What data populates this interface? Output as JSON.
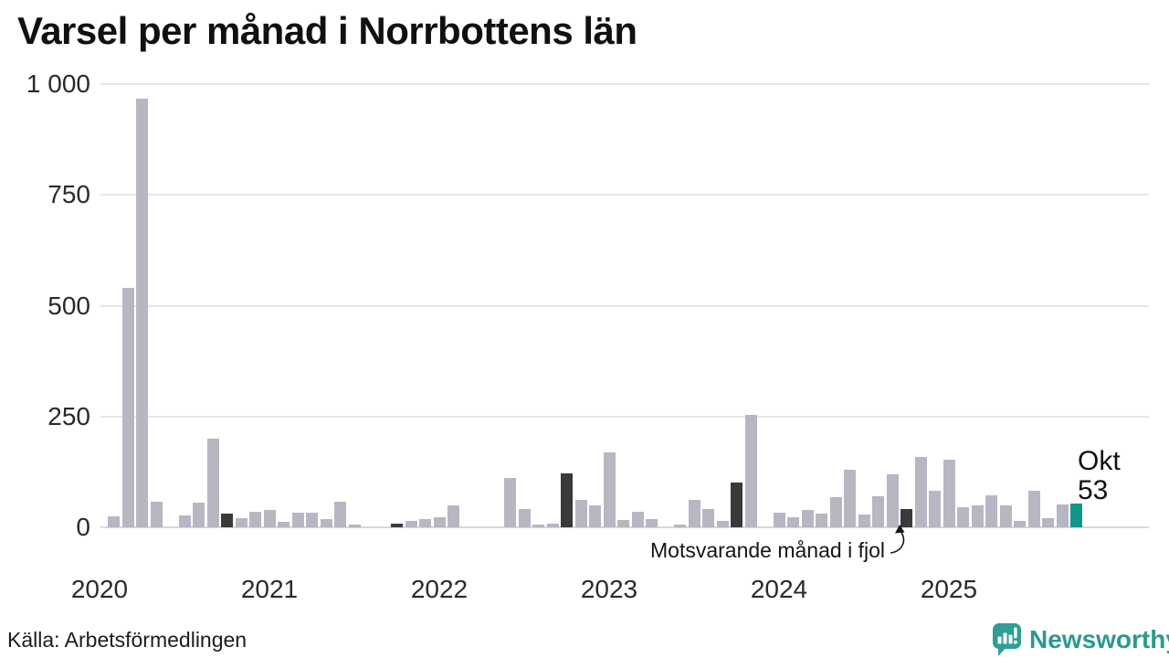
{
  "title": "Varsel per månad i Norrbottens län",
  "source": "Källa: Arbetsförmedlingen",
  "logo": {
    "text": "Newsworthy"
  },
  "annotation": {
    "text": "Motsvarande månad i fjol"
  },
  "highlight_label": {
    "line1": "Okt",
    "line2": "53"
  },
  "colors": {
    "bar_normal": "#b9b6c3",
    "bar_prev_october": "#3a3a3a",
    "bar_current": "#12968a",
    "logo_teal": "#2f9e93",
    "grid": "#e6e6ea",
    "text": "#1a1a1a"
  },
  "chart_data": {
    "type": "bar",
    "title": "Varsel per månad i Norrbottens län",
    "xlabel": "",
    "ylabel": "",
    "ylim": [
      0,
      1000
    ],
    "grid": "horizontal",
    "yticks": [
      0,
      250,
      500,
      750,
      1000
    ],
    "ytick_labels": [
      "0",
      "250",
      "500",
      "750",
      "1 000"
    ],
    "x_year_labels": [
      "2020",
      "2021",
      "2022",
      "2023",
      "2024",
      "2025"
    ],
    "start_month": "2020-02",
    "end_month": "2025-10",
    "highlighted_month": {
      "label": "Okt",
      "value": 53
    },
    "annotation_target_month": "2024-10",
    "points": [
      {
        "month": "2020-02",
        "value": 25,
        "kind": "normal"
      },
      {
        "month": "2020-03",
        "value": 540,
        "kind": "normal"
      },
      {
        "month": "2020-04",
        "value": 967,
        "kind": "normal"
      },
      {
        "month": "2020-05",
        "value": 57,
        "kind": "normal"
      },
      {
        "month": "2020-06",
        "value": 0,
        "kind": "normal"
      },
      {
        "month": "2020-07",
        "value": 27,
        "kind": "normal"
      },
      {
        "month": "2020-08",
        "value": 55,
        "kind": "normal"
      },
      {
        "month": "2020-09",
        "value": 200,
        "kind": "normal"
      },
      {
        "month": "2020-10",
        "value": 31,
        "kind": "prev_october"
      },
      {
        "month": "2020-11",
        "value": 21,
        "kind": "normal"
      },
      {
        "month": "2020-12",
        "value": 35,
        "kind": "normal"
      },
      {
        "month": "2021-01",
        "value": 39,
        "kind": "normal"
      },
      {
        "month": "2021-02",
        "value": 12,
        "kind": "normal"
      },
      {
        "month": "2021-03",
        "value": 33,
        "kind": "normal"
      },
      {
        "month": "2021-04",
        "value": 33,
        "kind": "normal"
      },
      {
        "month": "2021-05",
        "value": 19,
        "kind": "normal"
      },
      {
        "month": "2021-06",
        "value": 58,
        "kind": "normal"
      },
      {
        "month": "2021-07",
        "value": 6,
        "kind": "normal"
      },
      {
        "month": "2021-08",
        "value": 0,
        "kind": "normal"
      },
      {
        "month": "2021-09",
        "value": 0,
        "kind": "normal"
      },
      {
        "month": "2021-10",
        "value": 8,
        "kind": "prev_october"
      },
      {
        "month": "2021-11",
        "value": 14,
        "kind": "normal"
      },
      {
        "month": "2021-12",
        "value": 18,
        "kind": "normal"
      },
      {
        "month": "2022-01",
        "value": 23,
        "kind": "normal"
      },
      {
        "month": "2022-02",
        "value": 49,
        "kind": "normal"
      },
      {
        "month": "2022-03",
        "value": 0,
        "kind": "normal"
      },
      {
        "month": "2022-04",
        "value": 0,
        "kind": "normal"
      },
      {
        "month": "2022-05",
        "value": 0,
        "kind": "normal"
      },
      {
        "month": "2022-06",
        "value": 111,
        "kind": "normal"
      },
      {
        "month": "2022-07",
        "value": 42,
        "kind": "normal"
      },
      {
        "month": "2022-08",
        "value": 6,
        "kind": "normal"
      },
      {
        "month": "2022-09",
        "value": 8,
        "kind": "normal"
      },
      {
        "month": "2022-10",
        "value": 121,
        "kind": "prev_october"
      },
      {
        "month": "2022-11",
        "value": 62,
        "kind": "normal"
      },
      {
        "month": "2022-12",
        "value": 49,
        "kind": "normal"
      },
      {
        "month": "2023-01",
        "value": 169,
        "kind": "normal"
      },
      {
        "month": "2023-02",
        "value": 17,
        "kind": "normal"
      },
      {
        "month": "2023-03",
        "value": 36,
        "kind": "normal"
      },
      {
        "month": "2023-04",
        "value": 19,
        "kind": "normal"
      },
      {
        "month": "2023-05",
        "value": 0,
        "kind": "normal"
      },
      {
        "month": "2023-06",
        "value": 7,
        "kind": "normal"
      },
      {
        "month": "2023-07",
        "value": 62,
        "kind": "normal"
      },
      {
        "month": "2023-08",
        "value": 41,
        "kind": "normal"
      },
      {
        "month": "2023-09",
        "value": 14,
        "kind": "normal"
      },
      {
        "month": "2023-10",
        "value": 101,
        "kind": "prev_october"
      },
      {
        "month": "2023-11",
        "value": 253,
        "kind": "normal"
      },
      {
        "month": "2023-12",
        "value": 0,
        "kind": "normal"
      },
      {
        "month": "2024-01",
        "value": 33,
        "kind": "normal"
      },
      {
        "month": "2024-02",
        "value": 23,
        "kind": "normal"
      },
      {
        "month": "2024-03",
        "value": 39,
        "kind": "normal"
      },
      {
        "month": "2024-04",
        "value": 31,
        "kind": "normal"
      },
      {
        "month": "2024-05",
        "value": 68,
        "kind": "normal"
      },
      {
        "month": "2024-06",
        "value": 130,
        "kind": "normal"
      },
      {
        "month": "2024-07",
        "value": 29,
        "kind": "normal"
      },
      {
        "month": "2024-08",
        "value": 70,
        "kind": "normal"
      },
      {
        "month": "2024-09",
        "value": 119,
        "kind": "normal"
      },
      {
        "month": "2024-10",
        "value": 41,
        "kind": "prev_october"
      },
      {
        "month": "2024-11",
        "value": 159,
        "kind": "normal"
      },
      {
        "month": "2024-12",
        "value": 82,
        "kind": "normal"
      },
      {
        "month": "2025-01",
        "value": 153,
        "kind": "normal"
      },
      {
        "month": "2025-02",
        "value": 45,
        "kind": "normal"
      },
      {
        "month": "2025-03",
        "value": 49,
        "kind": "normal"
      },
      {
        "month": "2025-04",
        "value": 72,
        "kind": "normal"
      },
      {
        "month": "2025-05",
        "value": 50,
        "kind": "normal"
      },
      {
        "month": "2025-06",
        "value": 14,
        "kind": "normal"
      },
      {
        "month": "2025-07",
        "value": 83,
        "kind": "normal"
      },
      {
        "month": "2025-08",
        "value": 20,
        "kind": "normal"
      },
      {
        "month": "2025-09",
        "value": 51,
        "kind": "normal"
      },
      {
        "month": "2025-10",
        "value": 53,
        "kind": "current"
      }
    ]
  }
}
